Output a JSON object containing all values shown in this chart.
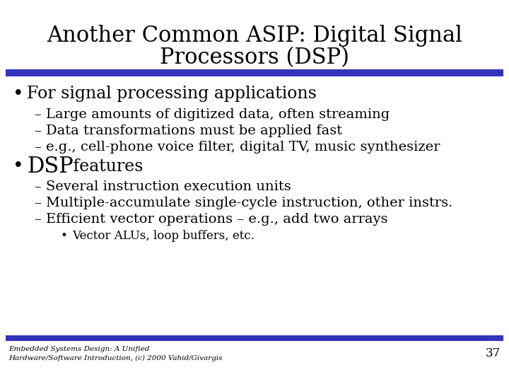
{
  "title_line1": "Another Common ASIP: Digital Signal",
  "title_line2": "Processors (DSP)",
  "title_fontsize": 22,
  "title_color": "#000000",
  "bg_color": "#ffffff",
  "bar_color": "#3333bb",
  "footer_bar_color": "#3333bb",
  "bullet1": "For signal processing applications",
  "bullet1_fontsize": 17,
  "sub1_1": "Large amounts of digitized data, often streaming",
  "sub1_2": "Data transformations must be applied fast",
  "sub1_3": "e.g., cell-phone voice filter, digital TV, music synthesizer",
  "sub_fontsize": 14,
  "bullet2_prefix": "DSP",
  "bullet2_suffix": " features",
  "bullet2_prefix_fontsize": 22,
  "sub2_1": "Several instruction execution units",
  "sub2_2": "Multiple-accumulate single-cycle instruction, other instrs.",
  "sub2_3": "Efficient vector operations – e.g., add two arrays",
  "subsub2_1": "Vector ALUs, loop buffers, etc.",
  "subsub_fontsize": 12,
  "footer_text1": "Embedded Systems Design: A Unified",
  "footer_text2": "Hardware/Software Introduction, (c) 2000 Vahid/Givargis",
  "footer_fontsize": 7.5,
  "page_number": "37",
  "page_number_fontsize": 12,
  "font_family": "serif"
}
